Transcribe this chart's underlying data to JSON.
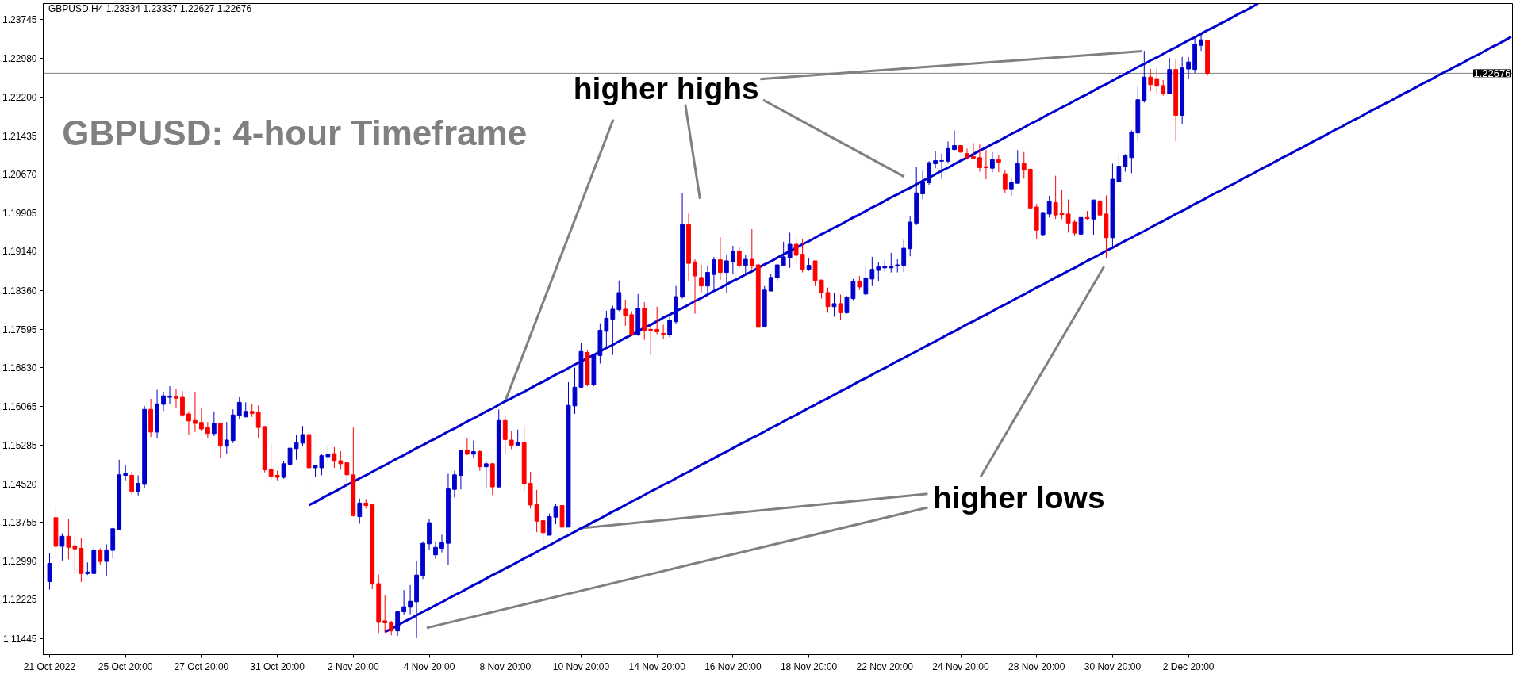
{
  "chart_data": {
    "type": "candlestick",
    "title": "GBPUSD: 4-hour Timeframe",
    "annotations": [
      "GBPUSD,H4 1.23334 1.23337 1.22627 1.22676",
      {
        "text": "higher highs",
        "x": "8 Nov 20:00",
        "y": 1.1616
      },
      {
        "text": "higher lows",
        "x": "10 Nov 20:00",
        "y": 1.1364
      }
    ],
    "categories": [
      "21 Oct 2022",
      null,
      null,
      null,
      null,
      null,
      null,
      null,
      null,
      null,
      null,
      null,
      "25 Oct 20:00",
      null,
      null,
      null,
      null,
      null,
      null,
      null,
      null,
      null,
      null,
      null,
      "27 Oct 20:00",
      null,
      null,
      null,
      null,
      null,
      null,
      null,
      null,
      null,
      null,
      null,
      "31 Oct 20:00",
      null,
      null,
      null,
      null,
      null,
      null,
      null,
      null,
      null,
      null,
      null,
      "2 Nov 20:00",
      null,
      null,
      null,
      null,
      null,
      null,
      null,
      null,
      null,
      null,
      null,
      "4 Nov 20:00",
      null,
      null,
      null,
      null,
      null,
      null,
      null,
      null,
      null,
      null,
      null,
      "8 Nov 20:00",
      null,
      null,
      null,
      null,
      null,
      null,
      null,
      null,
      null,
      null,
      null,
      "10 Nov 20:00",
      null,
      null,
      null,
      null,
      null,
      null,
      null,
      null,
      null,
      null,
      null,
      "14 Nov 20:00",
      null,
      null,
      null,
      null,
      null,
      null,
      null,
      null,
      null,
      null,
      null,
      "16 Nov 20:00",
      null,
      null,
      null,
      null,
      null,
      null,
      null,
      null,
      null,
      null,
      null,
      "18 Nov 20:00",
      null,
      null,
      null,
      null,
      null,
      null,
      null,
      null,
      null,
      null,
      null,
      "22 Nov 20:00",
      null,
      null,
      null,
      null,
      null,
      null,
      null,
      null,
      null,
      null,
      null,
      "24 Nov 20:00",
      null,
      null,
      null,
      null,
      null,
      null,
      null,
      null,
      null,
      null,
      null,
      "28 Nov 20:00",
      null,
      null,
      null,
      null,
      null,
      null,
      null,
      null,
      null,
      null,
      null,
      "30 Nov 20:00",
      null,
      null,
      null,
      null,
      null,
      null,
      null,
      null,
      null,
      null,
      null,
      "2 Dec 20:00",
      null,
      null,
      null,
      null,
      null,
      null,
      null,
      null,
      null,
      null,
      null,
      null,
      null,
      null,
      null,
      null,
      null,
      null,
      null,
      null,
      null,
      null,
      null,
      null,
      null,
      null,
      null,
      null,
      null,
      null,
      null,
      null,
      null,
      null,
      null,
      null,
      null,
      null,
      null,
      null,
      null,
      null,
      null,
      null,
      null,
      null,
      null,
      null,
      null,
      null,
      null
    ],
    "ohlc": [
      [
        1.1258,
        1.1315,
        1.1242,
        1.1294
      ],
      [
        1.1385,
        1.1407,
        1.1305,
        1.1328
      ],
      [
        1.1328,
        1.1354,
        1.13,
        1.1348
      ],
      [
        1.1348,
        1.1382,
        1.1302,
        1.1326
      ],
      [
        1.1329,
        1.1349,
        1.1273,
        1.1323
      ],
      [
        1.1324,
        1.1345,
        1.1257,
        1.1274
      ],
      [
        1.1274,
        1.1296,
        1.1271,
        1.1277
      ],
      [
        1.1274,
        1.1326,
        1.1273,
        1.132
      ],
      [
        1.132,
        1.1324,
        1.1291,
        1.1298
      ],
      [
        1.1298,
        1.1332,
        1.1269,
        1.1321
      ],
      [
        1.132,
        1.1365,
        1.1304,
        1.1363
      ],
      [
        1.1362,
        1.15,
        1.1362,
        1.147
      ],
      [
        1.1469,
        1.1489,
        1.1459,
        1.1472
      ],
      [
        1.1469,
        1.1476,
        1.1431,
        1.1437
      ],
      [
        1.1437,
        1.1469,
        1.1429,
        1.1453
      ],
      [
        1.1451,
        1.1607,
        1.1443,
        1.16
      ],
      [
        1.16,
        1.1621,
        1.1545,
        1.1555
      ],
      [
        1.1555,
        1.1639,
        1.1542,
        1.1611
      ],
      [
        1.161,
        1.1635,
        1.1597,
        1.1627
      ],
      [
        1.1624,
        1.1646,
        1.1611,
        1.1625
      ],
      [
        1.1625,
        1.1641,
        1.1603,
        1.1622
      ],
      [
        1.1624,
        1.1636,
        1.1585,
        1.1589
      ],
      [
        1.1591,
        1.1596,
        1.1549,
        1.1577
      ],
      [
        1.1578,
        1.1635,
        1.1555,
        1.1572
      ],
      [
        1.1574,
        1.1602,
        1.1556,
        1.1561
      ],
      [
        1.1564,
        1.1575,
        1.1542,
        1.1552
      ],
      [
        1.1552,
        1.1596,
        1.1547,
        1.1572
      ],
      [
        1.1572,
        1.1574,
        1.1503,
        1.1527
      ],
      [
        1.1527,
        1.1575,
        1.1511,
        1.1539
      ],
      [
        1.1538,
        1.16,
        1.1533,
        1.1589
      ],
      [
        1.1588,
        1.1624,
        1.1581,
        1.1614
      ],
      [
        1.1585,
        1.1614,
        1.1585,
        1.1596
      ],
      [
        1.1596,
        1.1611,
        1.1585,
        1.1592
      ],
      [
        1.1594,
        1.1608,
        1.1542,
        1.1564
      ],
      [
        1.1566,
        1.1566,
        1.1475,
        1.148
      ],
      [
        1.1481,
        1.153,
        1.1459,
        1.1467
      ],
      [
        1.1469,
        1.1478,
        1.1459,
        1.1465
      ],
      [
        1.1465,
        1.1497,
        1.1462,
        1.1492
      ],
      [
        1.1491,
        1.1533,
        1.1487,
        1.1523
      ],
      [
        1.1522,
        1.155,
        1.15,
        1.1534
      ],
      [
        1.1533,
        1.1567,
        1.1527,
        1.155
      ],
      [
        1.155,
        1.1552,
        1.1436,
        1.1484
      ],
      [
        1.1484,
        1.1489,
        1.1465,
        1.1489
      ],
      [
        1.1484,
        1.1511,
        1.1469,
        1.1508
      ],
      [
        1.1506,
        1.1528,
        1.1495,
        1.1511
      ],
      [
        1.1512,
        1.1525,
        1.1484,
        1.1497
      ],
      [
        1.1498,
        1.1517,
        1.148,
        1.1492
      ],
      [
        1.1494,
        1.1495,
        1.145,
        1.147
      ],
      [
        1.147,
        1.1564,
        1.1387,
        1.1389
      ],
      [
        1.1387,
        1.1423,
        1.1373,
        1.1414
      ],
      [
        1.1414,
        1.1422,
        1.1403,
        1.1409
      ],
      [
        1.1411,
        1.1411,
        1.1243,
        1.1253
      ],
      [
        1.1254,
        1.1272,
        1.1156,
        1.1177
      ],
      [
        1.118,
        1.1231,
        1.1157,
        1.1176
      ],
      [
        1.1177,
        1.118,
        1.1151,
        1.116
      ],
      [
        1.116,
        1.1198,
        1.115,
        1.1198
      ],
      [
        1.1198,
        1.1241,
        1.1191,
        1.1208
      ],
      [
        1.1207,
        1.1251,
        1.1193,
        1.1219
      ],
      [
        1.1218,
        1.1298,
        1.1146,
        1.1271
      ],
      [
        1.127,
        1.1338,
        1.1263,
        1.1334
      ],
      [
        1.1333,
        1.1382,
        1.1321,
        1.1375
      ],
      [
        1.1311,
        1.1338,
        1.1303,
        1.1326
      ],
      [
        1.1324,
        1.1351,
        1.1316,
        1.1335
      ],
      [
        1.1334,
        1.1472,
        1.1291,
        1.1442
      ],
      [
        1.1441,
        1.1478,
        1.1425,
        1.147
      ],
      [
        1.1469,
        1.1519,
        1.1441,
        1.1519
      ],
      [
        1.1519,
        1.1542,
        1.1509,
        1.1511
      ],
      [
        1.1511,
        1.1538,
        1.1503,
        1.1516
      ],
      [
        1.1516,
        1.1519,
        1.1478,
        1.1486
      ],
      [
        1.1486,
        1.1498,
        1.1444,
        1.1492
      ],
      [
        1.1492,
        1.1494,
        1.143,
        1.1446
      ],
      [
        1.1446,
        1.16,
        1.1444,
        1.1578
      ],
      [
        1.1578,
        1.1586,
        1.1511,
        1.154
      ],
      [
        1.1539,
        1.1558,
        1.1521,
        1.1529
      ],
      [
        1.1529,
        1.156,
        1.1529,
        1.1534
      ],
      [
        1.1534,
        1.1567,
        1.1436,
        1.1452
      ],
      [
        1.1453,
        1.1476,
        1.1403,
        1.141
      ],
      [
        1.1411,
        1.144,
        1.1356,
        1.1378
      ],
      [
        1.1379,
        1.1385,
        1.1333,
        1.1355
      ],
      [
        1.135,
        1.1393,
        1.135,
        1.1387
      ],
      [
        1.1386,
        1.1412,
        1.1372,
        1.1407
      ],
      [
        1.1409,
        1.1414,
        1.1362,
        1.1366
      ],
      [
        1.1366,
        1.1654,
        1.1366,
        1.1608
      ],
      [
        1.1607,
        1.1683,
        1.1591,
        1.1644
      ],
      [
        1.1644,
        1.1732,
        1.1643,
        1.1715
      ],
      [
        1.1713,
        1.1718,
        1.1646,
        1.1649
      ],
      [
        1.1649,
        1.1711,
        1.1646,
        1.1708
      ],
      [
        1.1707,
        1.1771,
        1.1691,
        1.1757
      ],
      [
        1.1755,
        1.1796,
        1.1721,
        1.1781
      ],
      [
        1.1779,
        1.1806,
        1.1708,
        1.1799
      ],
      [
        1.1798,
        1.1856,
        1.1795,
        1.1832
      ],
      [
        1.1799,
        1.1818,
        1.1766,
        1.1787
      ],
      [
        1.1788,
        1.1795,
        1.1746,
        1.1748
      ],
      [
        1.1748,
        1.1829,
        1.1746,
        1.1801
      ],
      [
        1.1801,
        1.1813,
        1.1738,
        1.1757
      ],
      [
        1.1759,
        1.1766,
        1.1708,
        1.1757
      ],
      [
        1.1759,
        1.1804,
        1.1749,
        1.1754
      ],
      [
        1.1751,
        1.1768,
        1.174,
        1.1749
      ],
      [
        1.1748,
        1.1785,
        1.1743,
        1.1777
      ],
      [
        1.1774,
        1.1845,
        1.177,
        1.1824
      ],
      [
        1.1823,
        1.203,
        1.182,
        1.1967
      ],
      [
        1.1967,
        1.1989,
        1.1854,
        1.189
      ],
      [
        1.1893,
        1.1898,
        1.179,
        1.1865
      ],
      [
        1.1862,
        1.1887,
        1.1831,
        1.1845
      ],
      [
        1.1845,
        1.1886,
        1.1831,
        1.1872
      ],
      [
        1.1868,
        1.1903,
        1.1835,
        1.1897
      ],
      [
        1.1897,
        1.1942,
        1.1857,
        1.1872
      ],
      [
        1.1872,
        1.1906,
        1.1831,
        1.1895
      ],
      [
        1.1893,
        1.1925,
        1.1868,
        1.1914
      ],
      [
        1.1914,
        1.1922,
        1.1882,
        1.1886
      ],
      [
        1.1886,
        1.1906,
        1.1868,
        1.1898
      ],
      [
        1.1898,
        1.1958,
        1.1878,
        1.1886
      ],
      [
        1.1887,
        1.189,
        1.1762,
        1.1763
      ],
      [
        1.1765,
        1.1845,
        1.1763,
        1.1837
      ],
      [
        1.1835,
        1.1868,
        1.1835,
        1.1862
      ],
      [
        1.1861,
        1.1889,
        1.1854,
        1.1887
      ],
      [
        1.1886,
        1.1933,
        1.1886,
        1.1903
      ],
      [
        1.1901,
        1.1951,
        1.1881,
        1.1928
      ],
      [
        1.1928,
        1.1942,
        1.1889,
        1.1906
      ],
      [
        1.1908,
        1.1939,
        1.1872,
        1.1878
      ],
      [
        1.1878,
        1.1901,
        1.1875,
        1.1886
      ],
      [
        1.1895,
        1.1895,
        1.1845,
        1.1856
      ],
      [
        1.1857,
        1.1857,
        1.182,
        1.1831
      ],
      [
        1.1832,
        1.1842,
        1.1792,
        1.1804
      ],
      [
        1.1804,
        1.1831,
        1.1784,
        1.181
      ],
      [
        1.181,
        1.1828,
        1.1777,
        1.1792
      ],
      [
        1.1792,
        1.1825,
        1.179,
        1.1823
      ],
      [
        1.182,
        1.1859,
        1.1817,
        1.1854
      ],
      [
        1.1854,
        1.1865,
        1.1837,
        1.1843
      ],
      [
        1.1829,
        1.1884,
        1.1823,
        1.1861
      ],
      [
        1.1859,
        1.1903,
        1.1845,
        1.1878
      ],
      [
        1.1876,
        1.1892,
        1.1854,
        1.1883
      ],
      [
        1.1881,
        1.1897,
        1.1872,
        1.1884
      ],
      [
        1.1881,
        1.1911,
        1.1872,
        1.1884
      ],
      [
        1.1885,
        1.1898,
        1.1872,
        1.1887
      ],
      [
        1.1886,
        1.1937,
        1.1873,
        1.192
      ],
      [
        1.1919,
        1.1983,
        1.1904,
        1.1972
      ],
      [
        1.197,
        1.2082,
        1.1966,
        1.203
      ],
      [
        1.2028,
        1.2074,
        1.2017,
        1.2052
      ],
      [
        1.205,
        1.2093,
        1.2046,
        1.209
      ],
      [
        1.2088,
        1.2113,
        1.2079,
        1.2094
      ],
      [
        1.2093,
        1.2108,
        1.2058,
        1.2094
      ],
      [
        1.2093,
        1.2132,
        1.2088,
        1.2118
      ],
      [
        1.2116,
        1.2154,
        1.2115,
        1.2124
      ],
      [
        1.2124,
        1.2124,
        1.211,
        1.2111
      ],
      [
        1.2108,
        1.2118,
        1.2096,
        1.21
      ],
      [
        1.2102,
        1.2129,
        1.2097,
        1.2099
      ],
      [
        1.21,
        1.2126,
        1.2072,
        1.208
      ],
      [
        1.2082,
        1.2115,
        1.2057,
        1.208
      ],
      [
        1.2079,
        1.2111,
        1.2071,
        1.2096
      ],
      [
        1.2096,
        1.2105,
        1.2071,
        1.2091
      ],
      [
        1.2068,
        1.2075,
        1.203,
        1.2038
      ],
      [
        1.2038,
        1.2061,
        1.2024,
        1.205
      ],
      [
        1.2049,
        1.2115,
        1.2049,
        1.2088
      ],
      [
        1.2088,
        1.2111,
        1.2058,
        1.2075
      ],
      [
        1.2077,
        1.2077,
        1.2,
        1.2
      ],
      [
        1.2002,
        1.2008,
        1.1939,
        1.1956
      ],
      [
        1.1947,
        1.1992,
        1.1945,
        1.1991
      ],
      [
        1.1988,
        1.2024,
        1.1981,
        1.2013
      ],
      [
        1.2011,
        1.2064,
        1.1978,
        1.1986
      ],
      [
        1.1989,
        1.2036,
        1.1978,
        1.1987
      ],
      [
        1.1988,
        1.2017,
        1.1951,
        1.197
      ],
      [
        1.1972,
        1.1977,
        1.1944,
        1.195
      ],
      [
        1.1948,
        1.1992,
        1.1939,
        1.1981
      ],
      [
        1.1981,
        1.1994,
        1.1977,
        1.1979
      ],
      [
        1.1978,
        1.2016,
        1.1947,
        1.2016
      ],
      [
        1.2014,
        1.203,
        1.1984,
        1.1986
      ],
      [
        1.1988,
        1.2025,
        1.19,
        1.1941
      ],
      [
        1.1941,
        1.2088,
        1.1922,
        1.2057
      ],
      [
        1.2052,
        1.2105,
        1.205,
        1.2083
      ],
      [
        1.2082,
        1.2107,
        1.2072,
        1.2104
      ],
      [
        1.21,
        1.2154,
        1.2069,
        1.2151
      ],
      [
        1.2149,
        1.2242,
        1.2133,
        1.2215
      ],
      [
        1.2213,
        1.2312,
        1.2209,
        1.226
      ],
      [
        1.226,
        1.2276,
        1.2232,
        1.2245
      ],
      [
        1.2257,
        1.2278,
        1.2229,
        1.2242
      ],
      [
        1.2243,
        1.2254,
        1.2223,
        1.2227
      ],
      [
        1.2227,
        1.2298,
        1.2226,
        1.2275
      ],
      [
        1.2275,
        1.2295,
        1.2133,
        1.2184
      ],
      [
        1.2184,
        1.23,
        1.2166,
        1.2278
      ],
      [
        1.2276,
        1.23,
        1.2257,
        1.229
      ],
      [
        1.2275,
        1.2339,
        1.2268,
        1.2325
      ],
      [
        1.2323,
        1.2344,
        1.2312,
        1.2334
      ],
      [
        1.23334,
        1.23337,
        1.22627,
        1.22676
      ],
      null,
      null,
      null,
      null,
      null,
      null,
      null,
      null,
      null,
      null,
      null,
      null,
      null,
      null,
      null,
      null,
      null,
      null,
      null,
      null,
      null,
      null,
      null,
      null,
      null,
      null,
      null,
      null,
      null,
      null,
      null,
      null,
      null,
      null,
      null,
      null,
      null,
      null,
      null,
      null,
      null,
      null,
      null,
      null,
      null,
      null,
      null,
      null
    ],
    "colors": [
      "#0000cd",
      "#ff0000",
      "#0000cd",
      "#ff0000",
      "#ff0000",
      "#ff0000",
      "#0000cd",
      "#0000cd",
      "#ff0000",
      "#0000cd",
      "#0000cd",
      "#0000cd",
      "#0000cd",
      "#ff0000",
      "#0000cd",
      "#0000cd",
      "#ff0000",
      "#0000cd",
      "#0000cd",
      "#0000cd",
      "#ff0000",
      "#ff0000",
      "#ff0000",
      "#ff0000",
      "#ff0000",
      "#ff0000",
      "#0000cd",
      "#ff0000",
      "#0000cd",
      "#0000cd",
      "#0000cd",
      "#0000cd",
      "#ff0000",
      "#ff0000",
      "#ff0000",
      "#ff0000",
      "#ff0000",
      "#0000cd",
      "#0000cd",
      "#0000cd",
      "#0000cd",
      "#ff0000",
      "#0000cd",
      "#0000cd",
      "#0000cd",
      "#ff0000",
      "#ff0000",
      "#ff0000",
      "#ff0000",
      "#0000cd",
      "#ff0000",
      "#ff0000",
      "#ff0000",
      "#ff0000",
      "#ff0000",
      "#0000cd",
      "#0000cd",
      "#0000cd",
      "#0000cd",
      "#0000cd",
      "#0000cd",
      "#0000cd",
      "#0000cd",
      "#0000cd",
      "#0000cd",
      "#0000cd",
      "#ff0000",
      "#0000cd",
      "#ff0000",
      "#0000cd",
      "#ff0000",
      "#0000cd",
      "#ff0000",
      "#ff0000",
      "#0000cd",
      "#ff0000",
      "#ff0000",
      "#ff0000",
      "#ff0000",
      "#0000cd",
      "#0000cd",
      "#ff0000",
      "#0000cd",
      "#0000cd",
      "#0000cd",
      "#ff0000",
      "#0000cd",
      "#0000cd",
      "#0000cd",
      "#0000cd",
      "#0000cd",
      "#ff0000",
      "#ff0000",
      "#0000cd",
      "#ff0000",
      "#ff0000",
      "#ff0000",
      "#ff0000",
      "#0000cd",
      "#0000cd",
      "#0000cd",
      "#ff0000",
      "#ff0000",
      "#ff0000",
      "#0000cd",
      "#0000cd",
      "#ff0000",
      "#0000cd",
      "#0000cd",
      "#ff0000",
      "#0000cd",
      "#ff0000",
      "#ff0000",
      "#0000cd",
      "#0000cd",
      "#0000cd",
      "#0000cd",
      "#0000cd",
      "#ff0000",
      "#ff0000",
      "#0000cd",
      "#ff0000",
      "#ff0000",
      "#ff0000",
      "#0000cd",
      "#ff0000",
      "#0000cd",
      "#0000cd",
      "#ff0000",
      "#0000cd",
      "#0000cd",
      "#0000cd",
      "#0000cd",
      "#0000cd",
      "#0000cd",
      "#0000cd",
      "#0000cd",
      "#0000cd",
      "#0000cd",
      "#0000cd",
      "#0000cd",
      "#0000cd",
      "#0000cd",
      "#0000cd",
      "#ff0000",
      "#ff0000",
      "#ff0000",
      "#ff0000",
      "#ff0000",
      "#0000cd",
      "#ff0000",
      "#ff0000",
      "#0000cd",
      "#0000cd",
      "#ff0000",
      "#ff0000",
      "#ff0000",
      "#0000cd",
      "#0000cd",
      "#ff0000",
      "#ff0000",
      "#ff0000",
      "#ff0000",
      "#0000cd",
      "#ff0000",
      "#0000cd",
      "#ff0000",
      "#ff0000",
      "#0000cd",
      "#0000cd",
      "#0000cd",
      "#0000cd",
      "#0000cd",
      "#0000cd",
      "#ff0000",
      "#ff0000",
      "#ff0000",
      "#0000cd",
      "#ff0000",
      "#0000cd",
      "#0000cd",
      "#0000cd",
      "#0000cd",
      "#ff0000",
      null,
      null,
      null,
      null,
      null,
      null,
      null,
      null,
      null,
      null,
      null,
      null,
      null,
      null,
      null,
      null,
      null,
      null,
      null,
      null,
      null,
      null,
      null,
      null,
      null,
      null,
      null,
      null,
      null,
      null,
      null,
      null,
      null,
      null,
      null,
      null,
      null,
      null,
      null,
      null,
      null,
      null,
      null,
      null,
      null,
      null,
      null,
      null
    ],
    "series": [
      {
        "type": "line",
        "color": "#0000cd",
        "values": [
          null,
          null,
          null,
          null,
          null,
          null,
          null,
          null,
          null,
          null,
          null,
          null,
          null,
          null,
          null,
          null,
          null,
          null,
          null,
          null,
          null,
          null,
          null,
          null,
          null,
          null,
          null,
          null,
          null,
          null,
          null,
          null,
          null,
          null,
          null,
          null,
          null,
          null,
          null,
          null,
          null,
          1.141,
          1.1416,
          1.1423,
          1.143,
          1.1436,
          1.1443,
          1.145,
          1.1456,
          1.1463,
          1.1469,
          1.1476,
          1.1483,
          1.1489,
          1.1496,
          1.1503,
          1.1509,
          1.1516,
          1.1523,
          1.1529,
          1.1536,
          1.1542,
          1.1549,
          1.1556,
          1.1562,
          1.1569,
          1.1576,
          1.1582,
          1.1589,
          1.1596,
          1.1602,
          1.1609,
          1.1616,
          1.1622,
          1.1629,
          1.1635,
          1.1642,
          1.1649,
          1.1655,
          1.1662,
          1.1669,
          1.1675,
          1.1682,
          1.1689,
          1.1695,
          1.1702,
          1.1708,
          1.1715,
          1.1722,
          1.1728,
          1.1735,
          1.1742,
          1.1748,
          1.1755,
          1.1762,
          1.1768,
          1.1775,
          1.1782,
          1.1788,
          1.1795,
          1.1801,
          1.1808,
          1.1815,
          1.1821,
          1.1828,
          1.1835,
          1.1841,
          1.1848,
          1.1855,
          1.1861,
          1.1868,
          1.1874,
          1.1881,
          1.1888,
          1.1894,
          1.1901,
          1.1908,
          1.1914,
          1.1921,
          1.1928,
          1.1934,
          1.1941,
          1.1948,
          1.1954,
          1.1961,
          1.1967,
          1.1974,
          1.1981,
          1.1987,
          1.1994,
          1.2001,
          1.2007,
          1.2014,
          1.2021,
          1.2027,
          1.2034,
          1.204,
          1.2047,
          1.2054,
          1.206,
          1.2067,
          1.2074,
          1.208,
          1.2087,
          1.2094,
          1.21,
          1.2107,
          1.2114,
          1.212,
          1.2127,
          1.2133,
          1.214,
          1.2147,
          1.2153,
          1.216,
          1.2167,
          1.2173,
          1.218,
          1.2187,
          1.2193,
          1.22,
          1.2206,
          1.2213,
          1.222,
          1.2226,
          1.2233,
          1.224,
          1.2246,
          1.2253,
          1.226,
          1.2266,
          1.2273,
          1.228,
          1.2286,
          1.2293,
          1.2299,
          1.2306,
          1.2313,
          1.2319,
          1.2326,
          1.2333,
          1.2339,
          1.2346,
          1.2353,
          1.2359,
          1.2366,
          1.2372,
          1.2379,
          1.2386,
          1.2392,
          1.2399,
          1.2406,
          null,
          null,
          null,
          null,
          null,
          null,
          null,
          null,
          null,
          null,
          null,
          null,
          null,
          null,
          null,
          null,
          null,
          null,
          null,
          null,
          null,
          null,
          null,
          null,
          null,
          null,
          null,
          null,
          null,
          null,
          null,
          null,
          null,
          null,
          null,
          null,
          null,
          null,
          null,
          null
        ]
      },
      {
        "type": "line",
        "color": "#0000cd",
        "values": [
          null,
          null,
          null,
          null,
          null,
          null,
          null,
          null,
          null,
          null,
          null,
          null,
          null,
          null,
          null,
          null,
          null,
          null,
          null,
          null,
          null,
          null,
          null,
          null,
          null,
          null,
          null,
          null,
          null,
          null,
          null,
          null,
          null,
          null,
          null,
          null,
          null,
          null,
          null,
          null,
          null,
          null,
          null,
          null,
          null,
          null,
          null,
          null,
          null,
          null,
          null,
          null,
          null,
          1.1158,
          1.1164,
          1.1171,
          1.1178,
          1.1184,
          1.1191,
          1.1198,
          1.1204,
          1.1211,
          1.1217,
          1.1224,
          1.1231,
          1.1237,
          1.1244,
          1.1251,
          1.1257,
          1.1264,
          1.1271,
          1.1277,
          1.1284,
          1.129,
          1.1297,
          1.1304,
          1.131,
          1.1317,
          1.1324,
          1.133,
          1.1337,
          1.1344,
          1.135,
          1.1357,
          1.1364,
          1.137,
          1.1377,
          1.1383,
          1.139,
          1.1397,
          1.1403,
          1.141,
          1.1417,
          1.1423,
          1.143,
          1.1437,
          1.1443,
          1.145,
          1.1456,
          1.1463,
          1.147,
          1.1476,
          1.1483,
          1.149,
          1.1496,
          1.1503,
          1.151,
          1.1516,
          1.1523,
          1.153,
          1.1536,
          1.1543,
          1.1549,
          1.1556,
          1.1563,
          1.1569,
          1.1576,
          1.1583,
          1.1589,
          1.1596,
          1.1603,
          1.1609,
          1.1616,
          1.1622,
          1.1629,
          1.1636,
          1.1642,
          1.1649,
          1.1656,
          1.1662,
          1.1669,
          1.1676,
          1.1682,
          1.1689,
          1.1696,
          1.1702,
          1.1709,
          1.1715,
          1.1722,
          1.1729,
          1.1735,
          1.1742,
          1.1749,
          1.1755,
          1.1762,
          1.1769,
          1.1775,
          1.1782,
          1.1788,
          1.1795,
          1.1802,
          1.1808,
          1.1815,
          1.1822,
          1.1828,
          1.1835,
          1.1842,
          1.1848,
          1.1855,
          1.1862,
          1.1868,
          1.1875,
          1.1881,
          1.1888,
          1.1895,
          1.1901,
          1.1908,
          1.1915,
          1.1921,
          1.1928,
          1.1935,
          1.1941,
          1.1948,
          1.1954,
          1.1961,
          1.1968,
          1.1974,
          1.1981,
          1.1988,
          1.1994,
          1.2001,
          1.2008,
          1.2014,
          1.2021,
          1.2028,
          1.2034,
          1.2041,
          1.2047,
          1.2054,
          1.2061,
          1.2067,
          1.2074,
          1.2081,
          1.2087,
          1.2094,
          1.2101,
          1.2107,
          1.2114,
          1.212,
          1.2127,
          1.2134,
          1.214,
          1.2147,
          1.2154,
          1.216,
          1.2167,
          1.2174,
          1.218,
          1.2187,
          1.2194,
          1.22,
          1.2207,
          1.2213,
          1.222,
          1.2227,
          1.2233,
          1.224,
          1.2247,
          1.2253,
          1.226,
          1.2267,
          1.2273,
          1.228,
          1.2286,
          1.2293,
          1.23,
          1.2306,
          1.2313,
          1.232,
          1.2326,
          1.2333,
          1.234
        ]
      }
    ],
    "ylim": [
      1.1113,
      1.2406
    ],
    "yticks": [
      {
        "value": 1.23745,
        "label": "1.23745"
      },
      {
        "value": 1.2298,
        "label": "1.22980"
      },
      {
        "value": 1.222,
        "label": "1.22200"
      },
      {
        "value": 1.21435,
        "label": "1.21435"
      },
      {
        "value": 1.2067,
        "label": "1.20670"
      },
      {
        "value": 1.19905,
        "label": "1.19905"
      },
      {
        "value": 1.1914,
        "label": "1.19140"
      },
      {
        "value": 1.1836,
        "label": "1.18360"
      },
      {
        "value": 1.17595,
        "label": "1.17595"
      },
      {
        "value": 1.1683,
        "label": "1.16830"
      },
      {
        "value": 1.16065,
        "label": "1.16065"
      },
      {
        "value": 1.15285,
        "label": "1.15285"
      },
      {
        "value": 1.1452,
        "label": "1.14520"
      },
      {
        "value": 1.13755,
        "label": "1.13755"
      },
      {
        "value": 1.1299,
        "label": "1.12990"
      },
      {
        "value": 1.12225,
        "label": "1.12225"
      },
      {
        "value": 1.11445,
        "label": "1.11445"
      }
    ],
    "ref_lines": [
      {
        "axis": "y",
        "value": 1.22676,
        "label": "1.22676",
        "color": "#808080"
      }
    ]
  }
}
